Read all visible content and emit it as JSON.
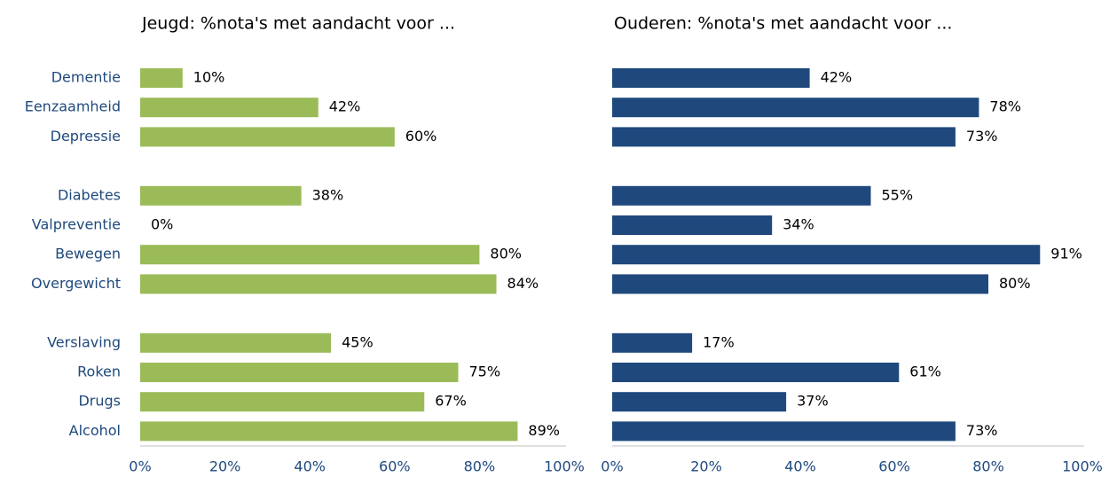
{
  "chart_data": [
    {
      "type": "barh",
      "title": "Jeugd: %nota's met aandacht voor ...",
      "categories": [
        "Dementie",
        "Eenzaamheid",
        "Depressie",
        null,
        "Diabetes",
        "Valpreventie",
        "Bewegen",
        "Overgewicht",
        null,
        "Verslaving",
        "Roken",
        "Drugs",
        "Alcohol"
      ],
      "values": [
        10,
        42,
        60,
        null,
        38,
        0,
        80,
        84,
        null,
        45,
        75,
        67,
        89
      ],
      "value_labels": [
        "10%",
        "42%",
        "60%",
        null,
        "38%",
        "0%",
        "80%",
        "84%",
        null,
        "45%",
        "75%",
        "67%",
        "89%"
      ],
      "color": "#9bbb59",
      "xlim": [
        0,
        100
      ],
      "xticks": [
        {
          "value": 0,
          "label": "0%"
        },
        {
          "value": 20,
          "label": "20%"
        },
        {
          "value": 40,
          "label": "40%"
        },
        {
          "value": 60,
          "label": "60%"
        },
        {
          "value": 80,
          "label": "80%"
        },
        {
          "value": 100,
          "label": "100%"
        }
      ]
    },
    {
      "type": "barh",
      "title": "Ouderen: %nota's met aandacht voor ...",
      "values": [
        42,
        78,
        73,
        null,
        55,
        34,
        91,
        80,
        null,
        17,
        61,
        37,
        73
      ],
      "value_labels": [
        "42%",
        "78%",
        "73%",
        null,
        "55%",
        "34%",
        "91%",
        "80%",
        null,
        "17%",
        "61%",
        "37%",
        "73%"
      ],
      "color": "#1f497d",
      "xlim": [
        0,
        100
      ],
      "xticks": [
        {
          "value": 0,
          "label": "0%"
        },
        {
          "value": 20,
          "label": "20%"
        },
        {
          "value": 40,
          "label": "40%"
        },
        {
          "value": 60,
          "label": "60%"
        },
        {
          "value": 80,
          "label": "80%"
        },
        {
          "value": 100,
          "label": "100%"
        }
      ]
    }
  ]
}
